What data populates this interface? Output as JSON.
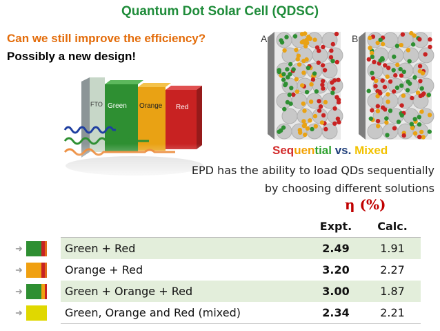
{
  "header": {
    "title": "Quantum Dot Solar Cell (QDSC)",
    "question": "Can we still improve the efficiency?",
    "subline": "Possibly a new design!"
  },
  "diagram": {
    "layers": [
      "FTO",
      "Green",
      "Orange",
      "Red"
    ],
    "colors": {
      "fto": "#9aa3a6",
      "green": "#2e8f32",
      "orange": "#e9a214",
      "red": "#c82222"
    }
  },
  "panels": {
    "label_a": "A",
    "label_b": "B"
  },
  "compare": {
    "seq": "Seq",
    "uen": "uen",
    "tial": "tial",
    "vs": " vs. ",
    "mixed": "Mixed"
  },
  "note": {
    "line1": "EPD has the ability to load QDs sequentially",
    "line2": "by choosing different solutions"
  },
  "table": {
    "eta_label": "η (%)",
    "headers": {
      "expt": "Expt.",
      "calc": "Calc."
    },
    "rows": [
      {
        "label": "Green + Red",
        "expt": "2.49",
        "calc": "1.91",
        "swatch": [
          "#2e8f32",
          "#c82222",
          "#e06b1a"
        ]
      },
      {
        "label": "Orange + Red",
        "expt": "3.20",
        "calc": "2.27",
        "swatch": [
          "#f0a010",
          "#c82222",
          "#e06b1a"
        ]
      },
      {
        "label": "Green + Orange + Red",
        "expt": "3.00",
        "calc": "1.87",
        "swatch": [
          "#2e8f32",
          "#f0a010",
          "#c82222"
        ]
      },
      {
        "label": "Green, Orange and Red (mixed)",
        "expt": "2.34",
        "calc": "2.21",
        "swatch": [
          "#e0d800",
          "#e0d800",
          "#e0d800"
        ]
      }
    ]
  }
}
